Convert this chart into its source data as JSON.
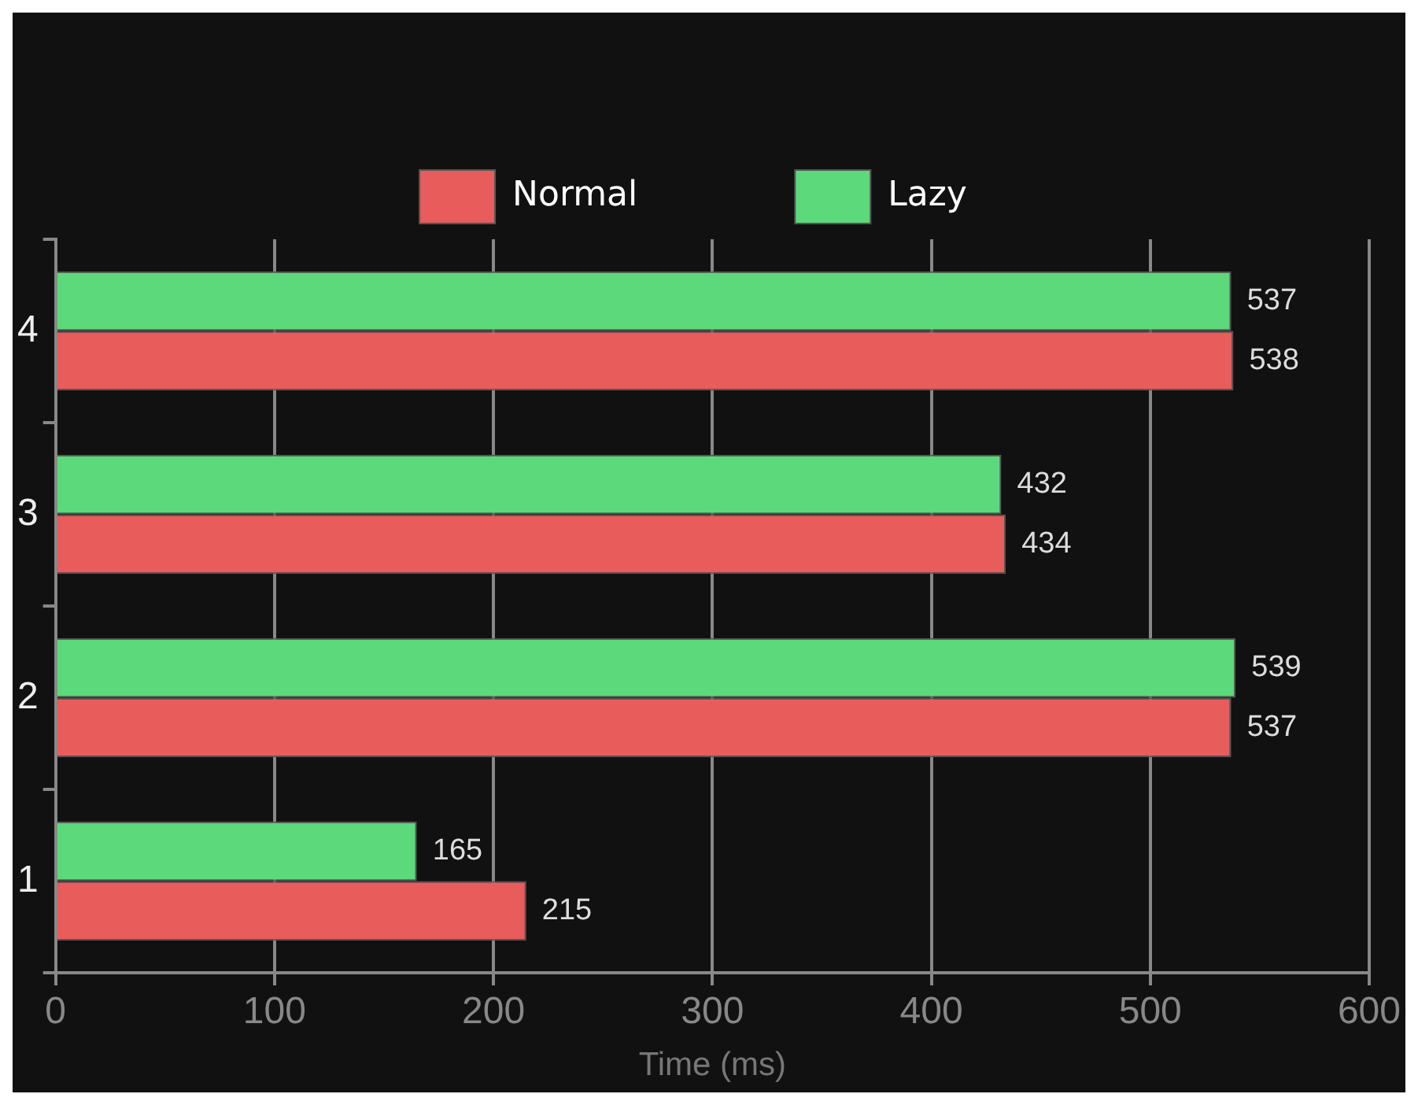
{
  "chart_data": {
    "type": "bar",
    "orientation": "horizontal",
    "categories": [
      "4",
      "3",
      "2",
      "1"
    ],
    "series": [
      {
        "name": "Normal",
        "color": "#e85c5c",
        "values": [
          538,
          434,
          537,
          215
        ]
      },
      {
        "name": "Lazy",
        "color": "#5cd97a",
        "values": [
          537,
          432,
          539,
          165
        ]
      }
    ],
    "xlabel": "Time (ms)",
    "xlim": [
      0,
      600
    ],
    "xticks": [
      0,
      100,
      200,
      300,
      400,
      500,
      600
    ],
    "grid": "x",
    "legend": "top",
    "data_labels": true
  }
}
